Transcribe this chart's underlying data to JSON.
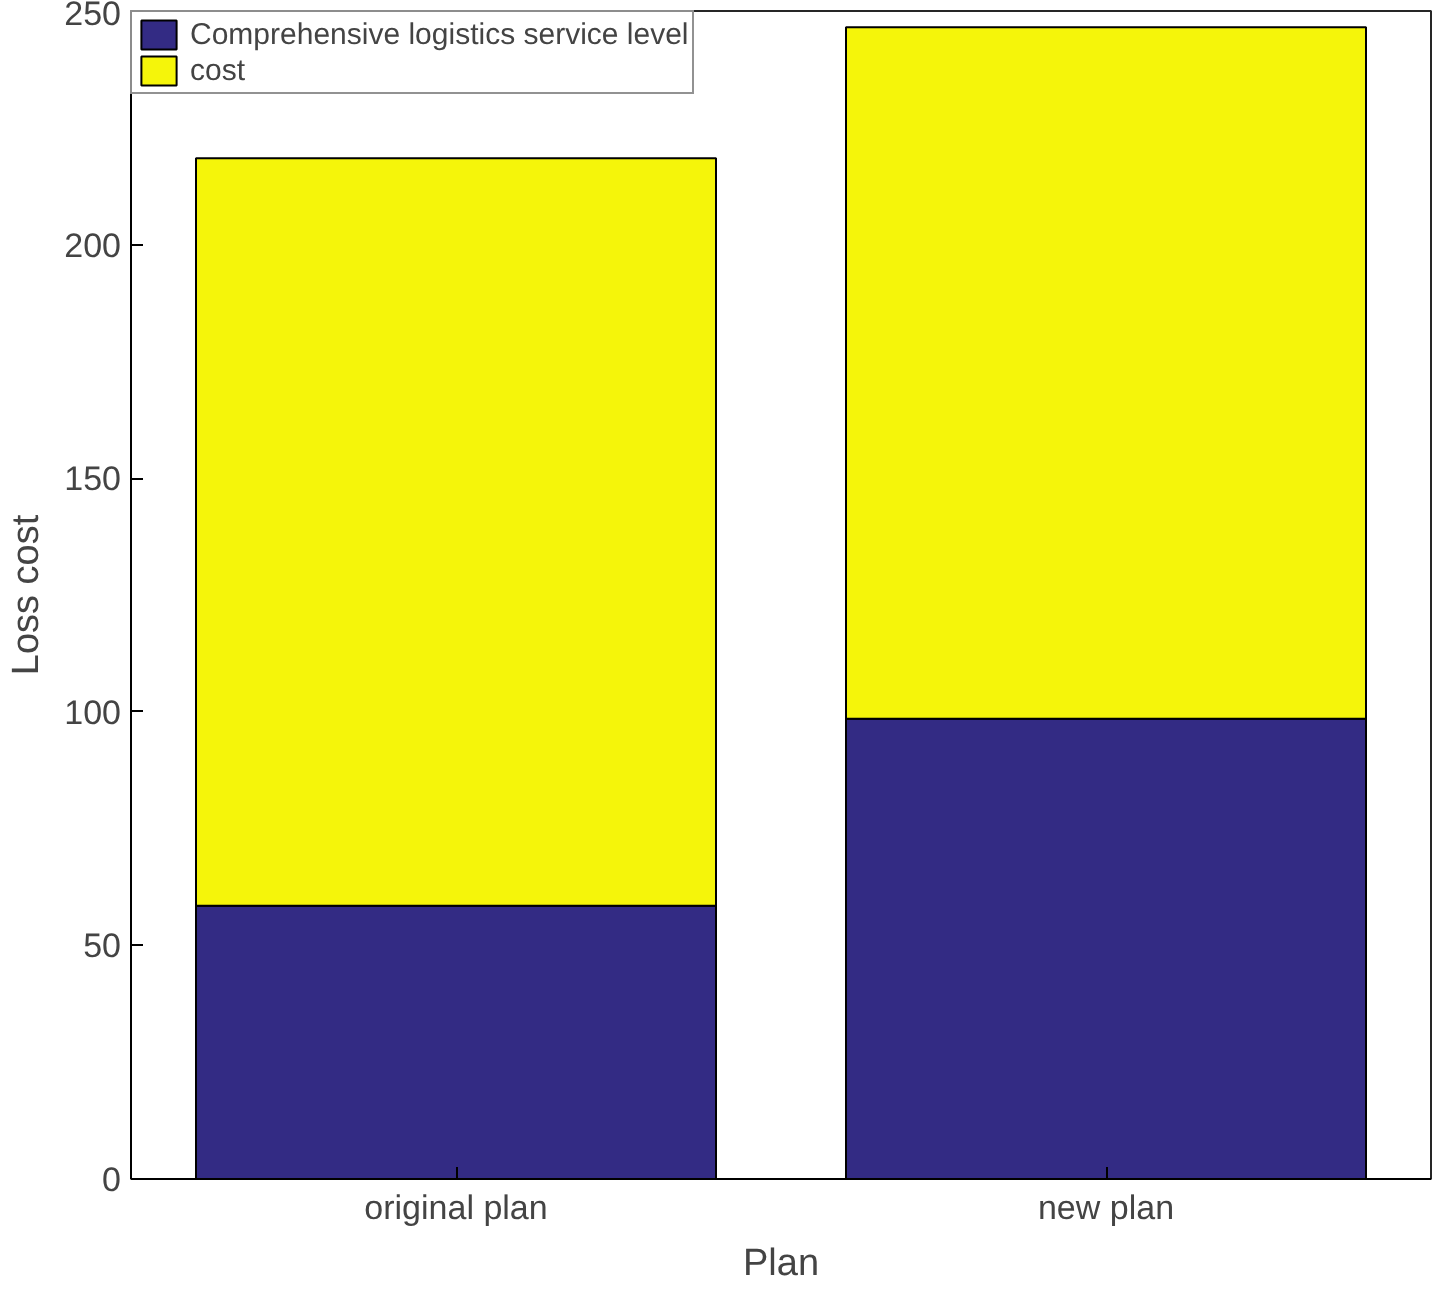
{
  "chart_data": {
    "type": "bar",
    "stacked": true,
    "xlabel": "Plan",
    "ylabel": "Loss cost",
    "categories": [
      "original plan",
      "new plan"
    ],
    "series": [
      {
        "name": "Comprehensive logistics service level",
        "color": "#332b84",
        "values": [
          58.5,
          98.5
        ]
      },
      {
        "name": "cost",
        "color": "#f5f50a",
        "values": [
          160,
          148
        ]
      }
    ],
    "ylim": [
      0,
      250
    ],
    "yticks": [
      0,
      50,
      100,
      150,
      200,
      250
    ],
    "grid": false,
    "legend": "top left"
  }
}
